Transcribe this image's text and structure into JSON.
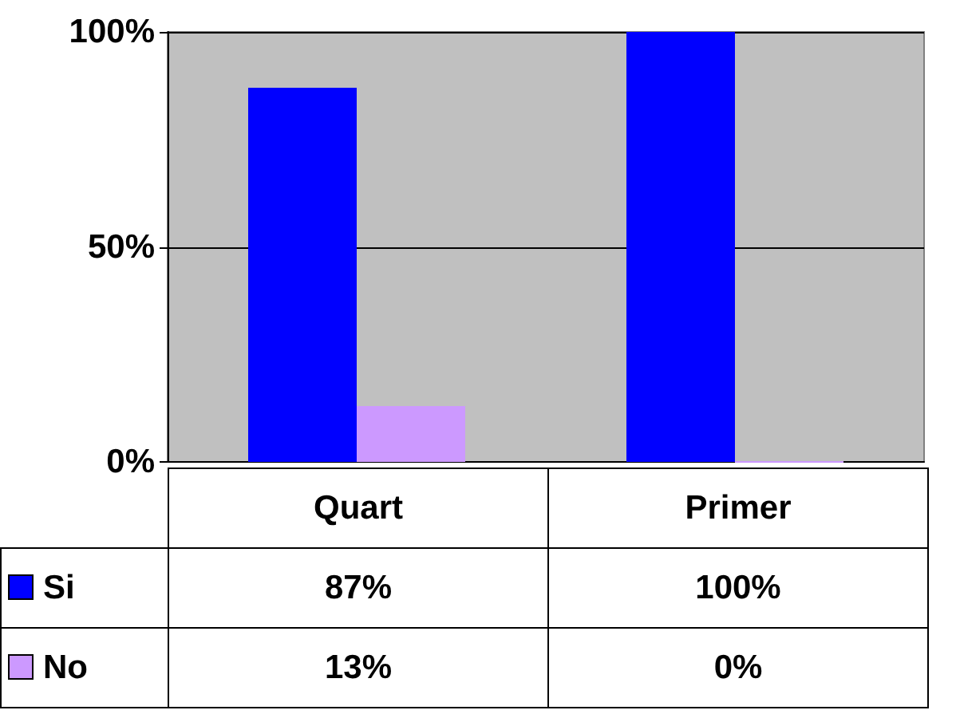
{
  "chart_data": {
    "type": "bar",
    "categories": [
      "Quart",
      "Primer"
    ],
    "series": [
      {
        "name": "Si",
        "color": "#0000ff",
        "values": [
          87,
          100
        ],
        "value_labels": [
          "87%",
          "100%"
        ]
      },
      {
        "name": "No",
        "color": "#cc99ff",
        "values": [
          13,
          0
        ],
        "value_labels": [
          "13%",
          "0%"
        ]
      }
    ],
    "ylim": [
      0,
      100
    ],
    "yticks": [
      {
        "value": 0,
        "label": "0%"
      },
      {
        "value": 50,
        "label": "50%"
      },
      {
        "value": 100,
        "label": "100%"
      }
    ],
    "grid": "y",
    "legend": "bottom"
  }
}
